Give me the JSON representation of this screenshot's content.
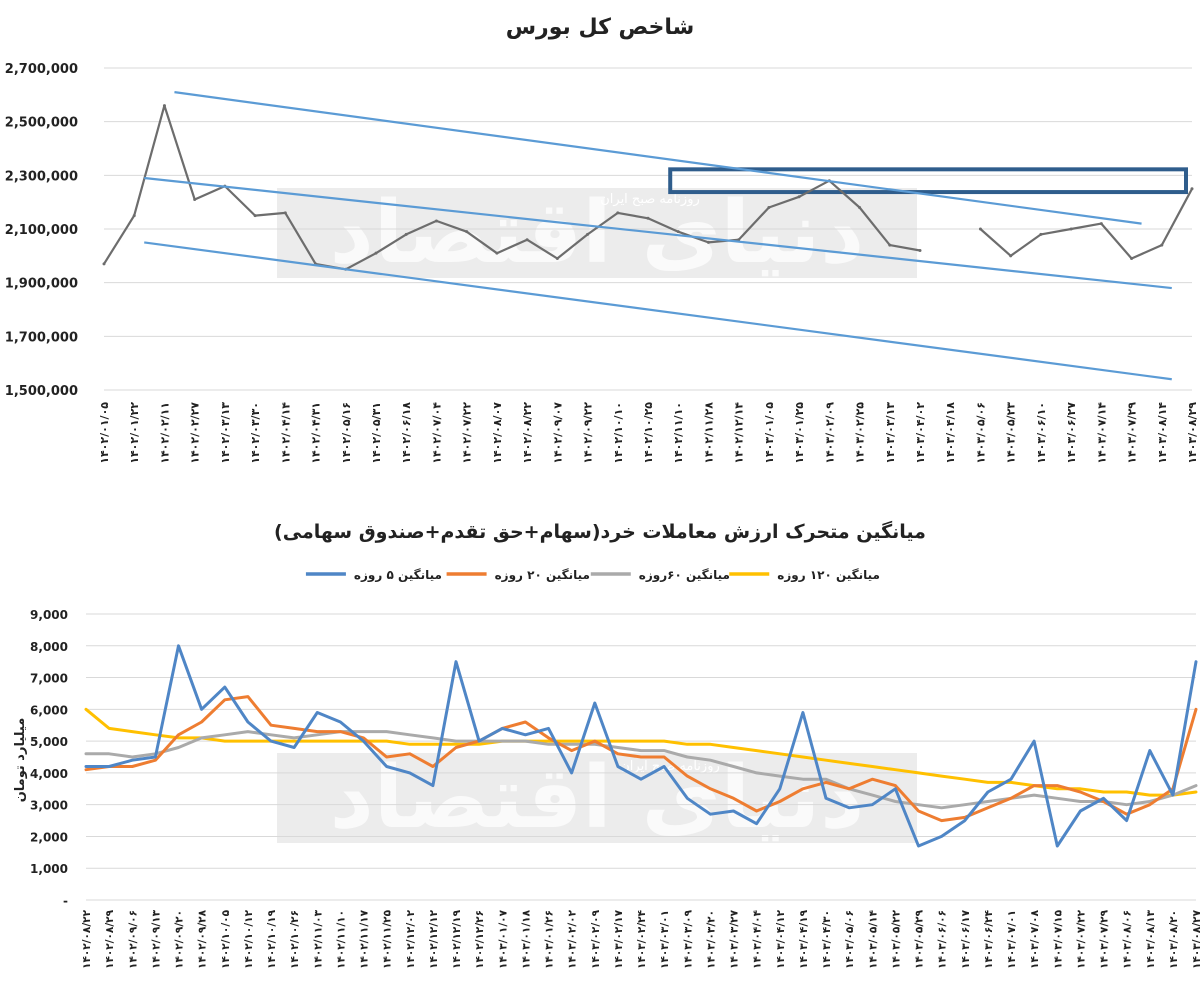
{
  "watermark": {
    "big": "دنیای اقتصاد",
    "small": "روزنامه صبح ایران"
  },
  "chart_data": [
    {
      "type": "line",
      "title": "شاخص کل بورس",
      "ylim": [
        1500000,
        2700000
      ],
      "yticks": [
        "2,700,000",
        "2,500,000",
        "2,300,000",
        "2,100,000",
        "1,900,000",
        "1,700,000",
        "1,500,000"
      ],
      "grid": true,
      "x": [
        "1402/01/05",
        "1402/01/22",
        "1402/02/11",
        "1402/02/27",
        "1402/03/13",
        "1402/03/30",
        "1402/04/14",
        "1402/04/31",
        "1402/05/16",
        "1402/05/31",
        "1402/06/18",
        "1402/07/04",
        "1402/07/22",
        "1402/08/07",
        "1402/08/22",
        "1402/09/07",
        "1402/09/22",
        "1402/10/10",
        "1402/10/25",
        "1402/11/10",
        "1402/11/28",
        "1402/12/14",
        "1403/01/05",
        "1403/01/25",
        "1403/02/09",
        "1403/02/25",
        "1403/03/13",
        "1403/04/02",
        "1403/04/18",
        "1403/05/06",
        "1403/05/23",
        "1403/06/10",
        "1403/06/27",
        "1403/07/14",
        "1403/07/29",
        "1403/08/14",
        "1403/08/29"
      ],
      "series": [
        {
          "name": "",
          "color": "#6d6d6d",
          "values": [
            1970000,
            2150000,
            2560000,
            2210000,
            2260000,
            2150000,
            2160000,
            1970000,
            1950000,
            2010000,
            2080000,
            2130000,
            2090000,
            2010000,
            2060000,
            1990000,
            2080000,
            2160000,
            2140000,
            2090000,
            2050000,
            2060000,
            2180000,
            2220000,
            2280000,
            2180000,
            2040000,
            2020000,
            null,
            2100000,
            2000000,
            2080000,
            2100000,
            2120000,
            1990000,
            2040000,
            2250000
          ],
          "gaps_after": [
            27,
            28
          ]
        }
      ],
      "trend_lines": [
        {
          "from": [
            "1402/02/11",
            2610000
          ],
          "to": [
            "1403/07/29",
            2120000
          ]
        },
        {
          "from": [
            "1402/01/22",
            2290000
          ],
          "to": [
            "1403/08/14",
            1880000
          ]
        },
        {
          "from": [
            "1402/01/22",
            2050000
          ],
          "to": [
            "1403/08/14",
            1540000
          ]
        }
      ],
      "highlight_box": {
        "from": "1402/11/10",
        "to": "1403/08/29",
        "ymin": 2260000,
        "ymax": 2300000
      }
    },
    {
      "type": "line",
      "title": "میانگین متحرک ارزش معاملات خرد(سهام+حق تقدم+صندوق سهامی)",
      "ylabel": "میلیارد تومان",
      "ylim": [
        0,
        9000
      ],
      "yticks": [
        "9,000",
        "8,000",
        "7,000",
        "6,000",
        "5,000",
        "4,000",
        "3,000",
        "2,000",
        "1,000",
        "-"
      ],
      "grid": true,
      "x": [
        "1402/08/22",
        "1402/08/29",
        "1402/09/06",
        "1402/09/13",
        "1402/09/20",
        "1402/09/28",
        "1402/10/05",
        "1402/10/12",
        "1402/10/19",
        "1402/10/26",
        "1402/11/03",
        "1402/11/10",
        "1402/11/17",
        "1402/11/25",
        "1402/12/02",
        "1402/12/12",
        "1402/12/19",
        "1402/12/26",
        "1403/01/07",
        "1403/01/18",
        "1403/01/26",
        "1403/02/02",
        "1403/02/09",
        "1403/02/17",
        "1403/02/24",
        "1403/03/01",
        "1403/03/09",
        "1403/03/20",
        "1403/03/27",
        "1403/04/04",
        "1403/04/12",
        "1403/04/19",
        "1403/04/30",
        "1403/05/06",
        "1403/05/14",
        "1403/05/22",
        "1403/05/29",
        "1403/06/06",
        "1403/06/17",
        "1403/06/24",
        "1403/07/01",
        "1403/07/08",
        "1403/07/15",
        "1403/07/22",
        "1403/07/29",
        "1403/08/06",
        "1403/08/13",
        "1403/08/20",
        "1403/08/27"
      ],
      "series": [
        {
          "name": "میانگین ۵ روزه",
          "color": "#4f86c6",
          "values": [
            4200,
            4200,
            4400,
            4500,
            8000,
            6000,
            6700,
            5600,
            5000,
            4800,
            5900,
            5600,
            5000,
            4200,
            4000,
            3600,
            7500,
            5000,
            5400,
            5200,
            5400,
            4000,
            6200,
            4200,
            3800,
            4200,
            3200,
            2700,
            2800,
            2400,
            3500,
            5900,
            3200,
            2900,
            3000,
            3500,
            1700,
            2000,
            2500,
            3400,
            3800,
            5000,
            1700,
            2800,
            3200,
            2500,
            4700,
            3300,
            7500
          ]
        },
        {
          "name": "میانگین ۲۰ روزه",
          "color": "#ee7d31",
          "values": [
            4100,
            4200,
            4200,
            4400,
            5200,
            5600,
            6300,
            6400,
            5500,
            5400,
            5300,
            5300,
            5100,
            4500,
            4600,
            4200,
            4800,
            5000,
            5400,
            5600,
            5100,
            4700,
            5000,
            4600,
            4500,
            4500,
            3900,
            3500,
            3200,
            2800,
            3100,
            3500,
            3700,
            3500,
            3800,
            3600,
            2800,
            2500,
            2600,
            2900,
            3200,
            3600,
            3600,
            3400,
            3100,
            2700,
            3000,
            3500,
            6000
          ]
        },
        {
          "name": "میانگین ۶۰روزه",
          "color": "#aaaaaa",
          "values": [
            4600,
            4600,
            4500,
            4600,
            4800,
            5100,
            5200,
            5300,
            5200,
            5100,
            5200,
            5300,
            5300,
            5300,
            5200,
            5100,
            5000,
            5000,
            5000,
            5000,
            4900,
            4900,
            4900,
            4800,
            4700,
            4700,
            4500,
            4400,
            4200,
            4000,
            3900,
            3800,
            3800,
            3500,
            3300,
            3100,
            3000,
            2900,
            3000,
            3100,
            3200,
            3300,
            3200,
            3100,
            3100,
            3000,
            3100,
            3300,
            3600
          ]
        },
        {
          "name": "میانگین ۱۲۰ روزه",
          "color": "#ffc000",
          "values": [
            6000,
            5400,
            5300,
            5200,
            5100,
            5100,
            5000,
            5000,
            5000,
            5000,
            5000,
            5000,
            5000,
            5000,
            4900,
            4900,
            4900,
            4900,
            5000,
            5000,
            5000,
            5000,
            5000,
            5000,
            5000,
            5000,
            4900,
            4900,
            4800,
            4700,
            4600,
            4500,
            4400,
            4300,
            4200,
            4100,
            4000,
            3900,
            3800,
            3700,
            3700,
            3600,
            3500,
            3500,
            3400,
            3400,
            3300,
            3300,
            3400
          ]
        }
      ]
    }
  ]
}
